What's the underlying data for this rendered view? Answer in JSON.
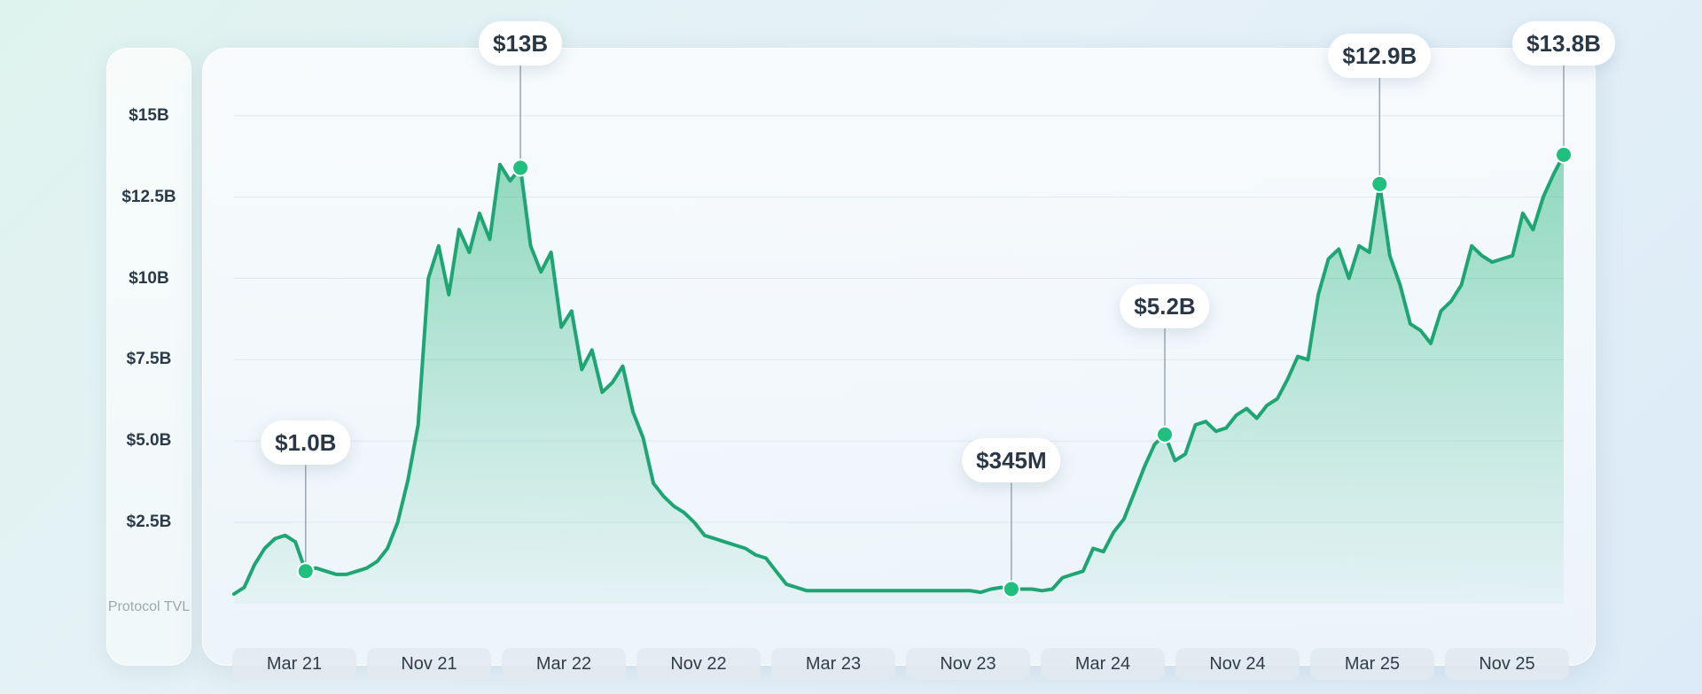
{
  "chart_data": {
    "type": "area",
    "title": "",
    "ylabel": "Protocol TVL",
    "xlabel": "",
    "y_unit": "$B",
    "ylim": [
      0,
      16
    ],
    "y_ticks": [
      2.5,
      5.0,
      7.5,
      10,
      12.5,
      15
    ],
    "y_tick_labels": [
      "$2.5B",
      "$5.0B",
      "$7.5B",
      "$10B",
      "$12.5B",
      "$15B"
    ],
    "x_tick_labels": [
      "Mar 21",
      "Nov 21",
      "Mar 22",
      "Nov 22",
      "Mar 23",
      "Nov 23",
      "Mar 24",
      "Nov 24",
      "Mar 25",
      "Nov 25"
    ],
    "grid": true,
    "color": "#1fa573",
    "series": [
      {
        "values": [
          0.3,
          0.5,
          1.2,
          1.7,
          2.0,
          2.1,
          1.9,
          1.0,
          1.1,
          1.0,
          0.9,
          0.9,
          1.0,
          1.1,
          1.3,
          1.7,
          2.5,
          3.8,
          5.5,
          10.0,
          11.0,
          9.5,
          11.5,
          10.8,
          12.0,
          11.2,
          13.5,
          13.0,
          13.4,
          11.0,
          10.2,
          10.8,
          8.5,
          9.0,
          7.2,
          7.8,
          6.5,
          6.8,
          7.3,
          5.9,
          5.1,
          3.7,
          3.3,
          3.0,
          2.8,
          2.5,
          2.1,
          2.0,
          1.9,
          1.8,
          1.7,
          1.5,
          1.4,
          1.0,
          0.6,
          0.5,
          0.4,
          0.4,
          0.4,
          0.4,
          0.4,
          0.4,
          0.4,
          0.4,
          0.4,
          0.4,
          0.4,
          0.4,
          0.4,
          0.4,
          0.4,
          0.4,
          0.4,
          0.35,
          0.45,
          0.5,
          0.45,
          0.45,
          0.45,
          0.4,
          0.45,
          0.8,
          0.9,
          1.0,
          1.7,
          1.6,
          2.2,
          2.6,
          3.4,
          4.2,
          4.9,
          5.2,
          4.4,
          4.6,
          5.5,
          5.6,
          5.3,
          5.4,
          5.8,
          6.0,
          5.7,
          6.1,
          6.3,
          6.9,
          7.6,
          7.5,
          9.5,
          10.6,
          10.9,
          10.0,
          11.0,
          10.8,
          12.9,
          10.7,
          9.8,
          8.6,
          8.4,
          8.0,
          9.0,
          9.3,
          9.8,
          11.0,
          10.7,
          10.5,
          10.6,
          10.7,
          12.0,
          11.5,
          12.5,
          13.2,
          13.8
        ],
        "annotations": [
          {
            "index": 7,
            "label": "$1.0B"
          },
          {
            "index": 28,
            "label": "$13B"
          },
          {
            "index": 76,
            "label": "$345M"
          },
          {
            "index": 91,
            "label": "$5.2B"
          },
          {
            "index": 112,
            "label": "$12.9B"
          },
          {
            "index": 130,
            "label": "$13.8B"
          }
        ]
      }
    ]
  }
}
